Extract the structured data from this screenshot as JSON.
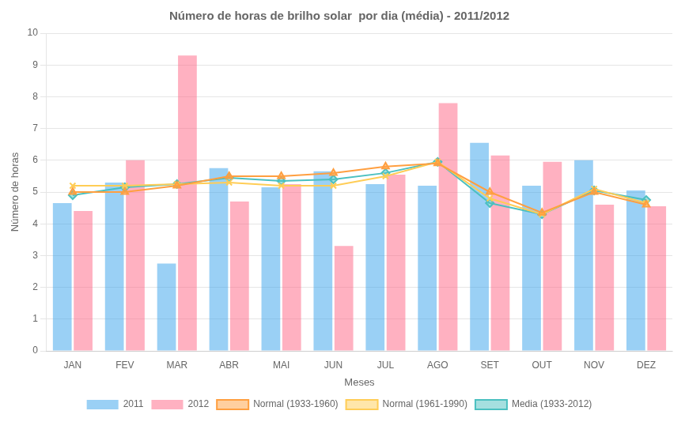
{
  "chart_data": {
    "type": "bar",
    "title": "Número de horas de brilho solar  por dia (média) - 2011/2012",
    "x_label": "Meses",
    "y_label": "Número de horas",
    "categories": [
      "JAN",
      "FEV",
      "MAR",
      "ABR",
      "MAI",
      "JUN",
      "JUL",
      "AGO",
      "SET",
      "OUT",
      "NOV",
      "DEZ"
    ],
    "series": [
      {
        "name": "2011",
        "type": "bar",
        "values": [
          4.65,
          5.3,
          2.75,
          5.75,
          5.15,
          5.65,
          5.25,
          5.2,
          6.55,
          5.2,
          6.0,
          5.05
        ]
      },
      {
        "name": "2012",
        "type": "bar",
        "values": [
          4.4,
          6.0,
          9.3,
          4.7,
          5.25,
          3.3,
          5.55,
          7.8,
          6.15,
          5.95,
          4.6,
          4.55
        ]
      },
      {
        "name": "Normal (1933-1960)",
        "type": "line",
        "marker": "triangle",
        "values": [
          5.0,
          5.0,
          5.2,
          5.5,
          5.5,
          5.6,
          5.8,
          5.9,
          5.0,
          4.35,
          5.0,
          4.6
        ]
      },
      {
        "name": "Normal (1961-1990)",
        "type": "line",
        "marker": "x",
        "values": [
          5.2,
          5.2,
          5.25,
          5.3,
          5.2,
          5.2,
          5.5,
          5.95,
          4.8,
          4.3,
          5.1,
          4.65
        ]
      },
      {
        "name": "Media (1933-2012)",
        "type": "line",
        "marker": "diamond",
        "values": [
          4.9,
          5.15,
          5.25,
          5.45,
          5.35,
          5.4,
          5.6,
          5.95,
          4.65,
          4.3,
          5.05,
          4.75
        ]
      }
    ],
    "ylim": [
      0,
      10
    ],
    "yticks": [
      0,
      1,
      2,
      3,
      4,
      5,
      6,
      7,
      8,
      9,
      10
    ],
    "grid": true,
    "legend": "bottom"
  }
}
